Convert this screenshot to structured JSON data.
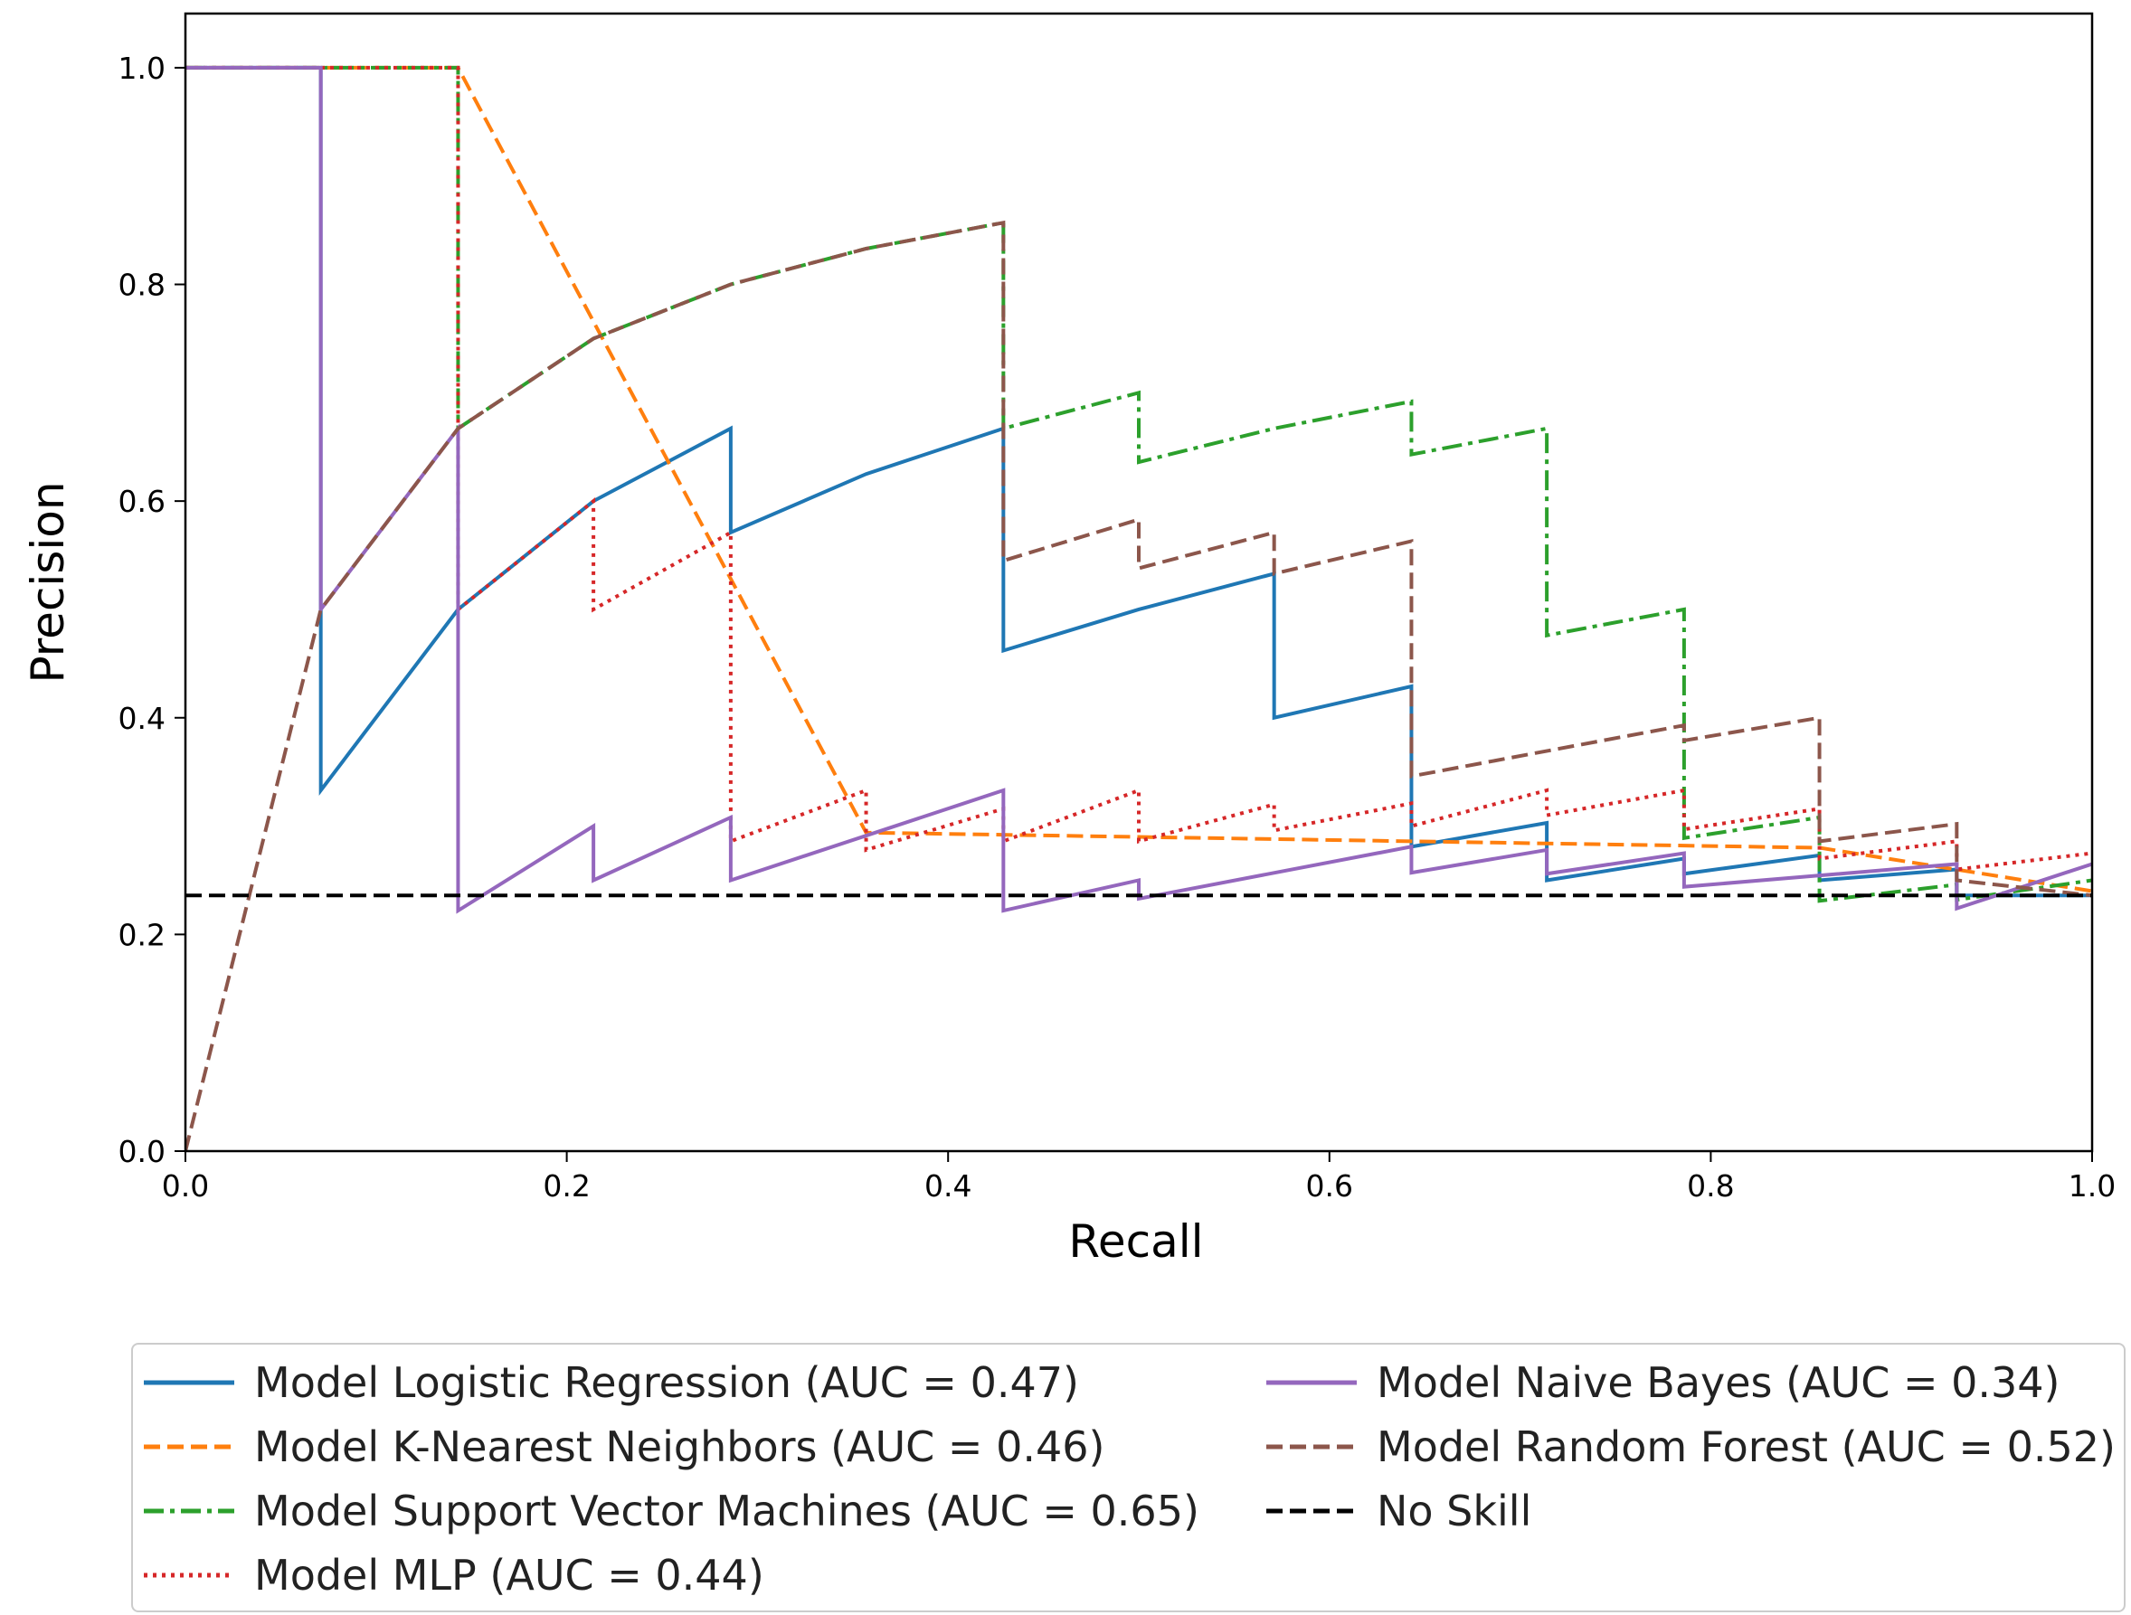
{
  "chart_data": {
    "type": "line",
    "xlabel": "Recall",
    "ylabel": "Precision",
    "xlim": [
      0,
      1
    ],
    "ylim": [
      0,
      1.05
    ],
    "xticks": [
      "0.0",
      "0.2",
      "0.4",
      "0.6",
      "0.8",
      "1.0"
    ],
    "yticks": [
      "0.0",
      "0.2",
      "0.4",
      "0.6",
      "0.8",
      "1.0"
    ],
    "grid": false,
    "legend_position": "below",
    "series": [
      {
        "name": "Model Logistic Regression (AUC = 0.47)",
        "color": "#1f77b4",
        "dash": "solid",
        "x": [
          0,
          0.071,
          0.071,
          0.143,
          0.214,
          0.286,
          0.286,
          0.357,
          0.429,
          0.429,
          0.5,
          0.571,
          0.571,
          0.643,
          0.643,
          0.714,
          0.714,
          0.786,
          0.786,
          0.857,
          0.857,
          0.929,
          0.929,
          1.0
        ],
        "y": [
          1.0,
          1.0,
          0.333,
          0.5,
          0.6,
          0.667,
          0.571,
          0.625,
          0.667,
          0.462,
          0.5,
          0.533,
          0.4,
          0.429,
          0.281,
          0.303,
          0.25,
          0.27,
          0.256,
          0.273,
          0.25,
          0.26,
          0.236,
          0.236
        ]
      },
      {
        "name": "Model K-Nearest Neighbors (AUC = 0.46)",
        "color": "#ff7f0e",
        "dash": "dashed",
        "x": [
          0,
          0.143,
          0.357,
          0.857,
          1.0
        ],
        "y": [
          1.0,
          1.0,
          0.294,
          0.28,
          0.24
        ]
      },
      {
        "name": "Model Support Vector Machines (AUC = 0.65)",
        "color": "#2ca02c",
        "dash": "dashdot",
        "x": [
          0,
          0.143,
          0.143,
          0.214,
          0.286,
          0.357,
          0.429,
          0.429,
          0.5,
          0.5,
          0.571,
          0.643,
          0.643,
          0.714,
          0.714,
          0.786,
          0.786,
          0.857,
          0.857,
          0.929,
          0.929,
          1.0
        ],
        "y": [
          1.0,
          1.0,
          0.667,
          0.75,
          0.8,
          0.833,
          0.857,
          0.667,
          0.7,
          0.636,
          0.667,
          0.692,
          0.643,
          0.667,
          0.476,
          0.5,
          0.289,
          0.308,
          0.231,
          0.246,
          0.232,
          0.25
        ]
      },
      {
        "name": "Model MLP (AUC = 0.44)",
        "color": "#d62728",
        "dash": "dotted",
        "x": [
          0,
          0.143,
          0.143,
          0.214,
          0.214,
          0.286,
          0.286,
          0.357,
          0.357,
          0.429,
          0.429,
          0.5,
          0.5,
          0.571,
          0.571,
          0.643,
          0.643,
          0.714,
          0.714,
          0.786,
          0.786,
          0.857,
          0.857,
          0.929,
          0.929,
          1.0
        ],
        "y": [
          1.0,
          1.0,
          0.5,
          0.6,
          0.5,
          0.571,
          0.286,
          0.333,
          0.278,
          0.316,
          0.286,
          0.333,
          0.286,
          0.32,
          0.296,
          0.321,
          0.3,
          0.333,
          0.31,
          0.333,
          0.297,
          0.316,
          0.27,
          0.286,
          0.26,
          0.275
        ]
      },
      {
        "name": "Model Naive Bayes (AUC = 0.34)",
        "color": "#9467bd",
        "dash": "solid",
        "x": [
          0,
          0.071,
          0.071,
          0.143,
          0.143,
          0.214,
          0.214,
          0.286,
          0.286,
          0.429,
          0.429,
          0.5,
          0.5,
          0.643,
          0.643,
          0.714,
          0.714,
          0.786,
          0.786,
          0.929,
          0.929,
          1.0
        ],
        "y": [
          1.0,
          1.0,
          0.5,
          0.667,
          0.222,
          0.3,
          0.25,
          0.308,
          0.25,
          0.333,
          0.222,
          0.25,
          0.233,
          0.281,
          0.257,
          0.278,
          0.256,
          0.275,
          0.244,
          0.265,
          0.224,
          0.265
        ]
      },
      {
        "name": "Model Random Forest (AUC = 0.52)",
        "color": "#8c564b",
        "dash": "dashed",
        "x": [
          0,
          0.071,
          0.143,
          0.214,
          0.286,
          0.357,
          0.429,
          0.429,
          0.5,
          0.5,
          0.571,
          0.571,
          0.643,
          0.643,
          0.786,
          0.786,
          0.857,
          0.857,
          0.929,
          0.929,
          1.0
        ],
        "y": [
          0,
          0.5,
          0.667,
          0.75,
          0.8,
          0.833,
          0.857,
          0.545,
          0.583,
          0.538,
          0.571,
          0.533,
          0.563,
          0.346,
          0.393,
          0.379,
          0.4,
          0.286,
          0.302,
          0.25,
          0.236
        ]
      },
      {
        "name": "No Skill",
        "color": "#000000",
        "dash": "dashed",
        "x": [
          0,
          1.0
        ],
        "y": [
          0.236,
          0.236
        ]
      }
    ]
  }
}
